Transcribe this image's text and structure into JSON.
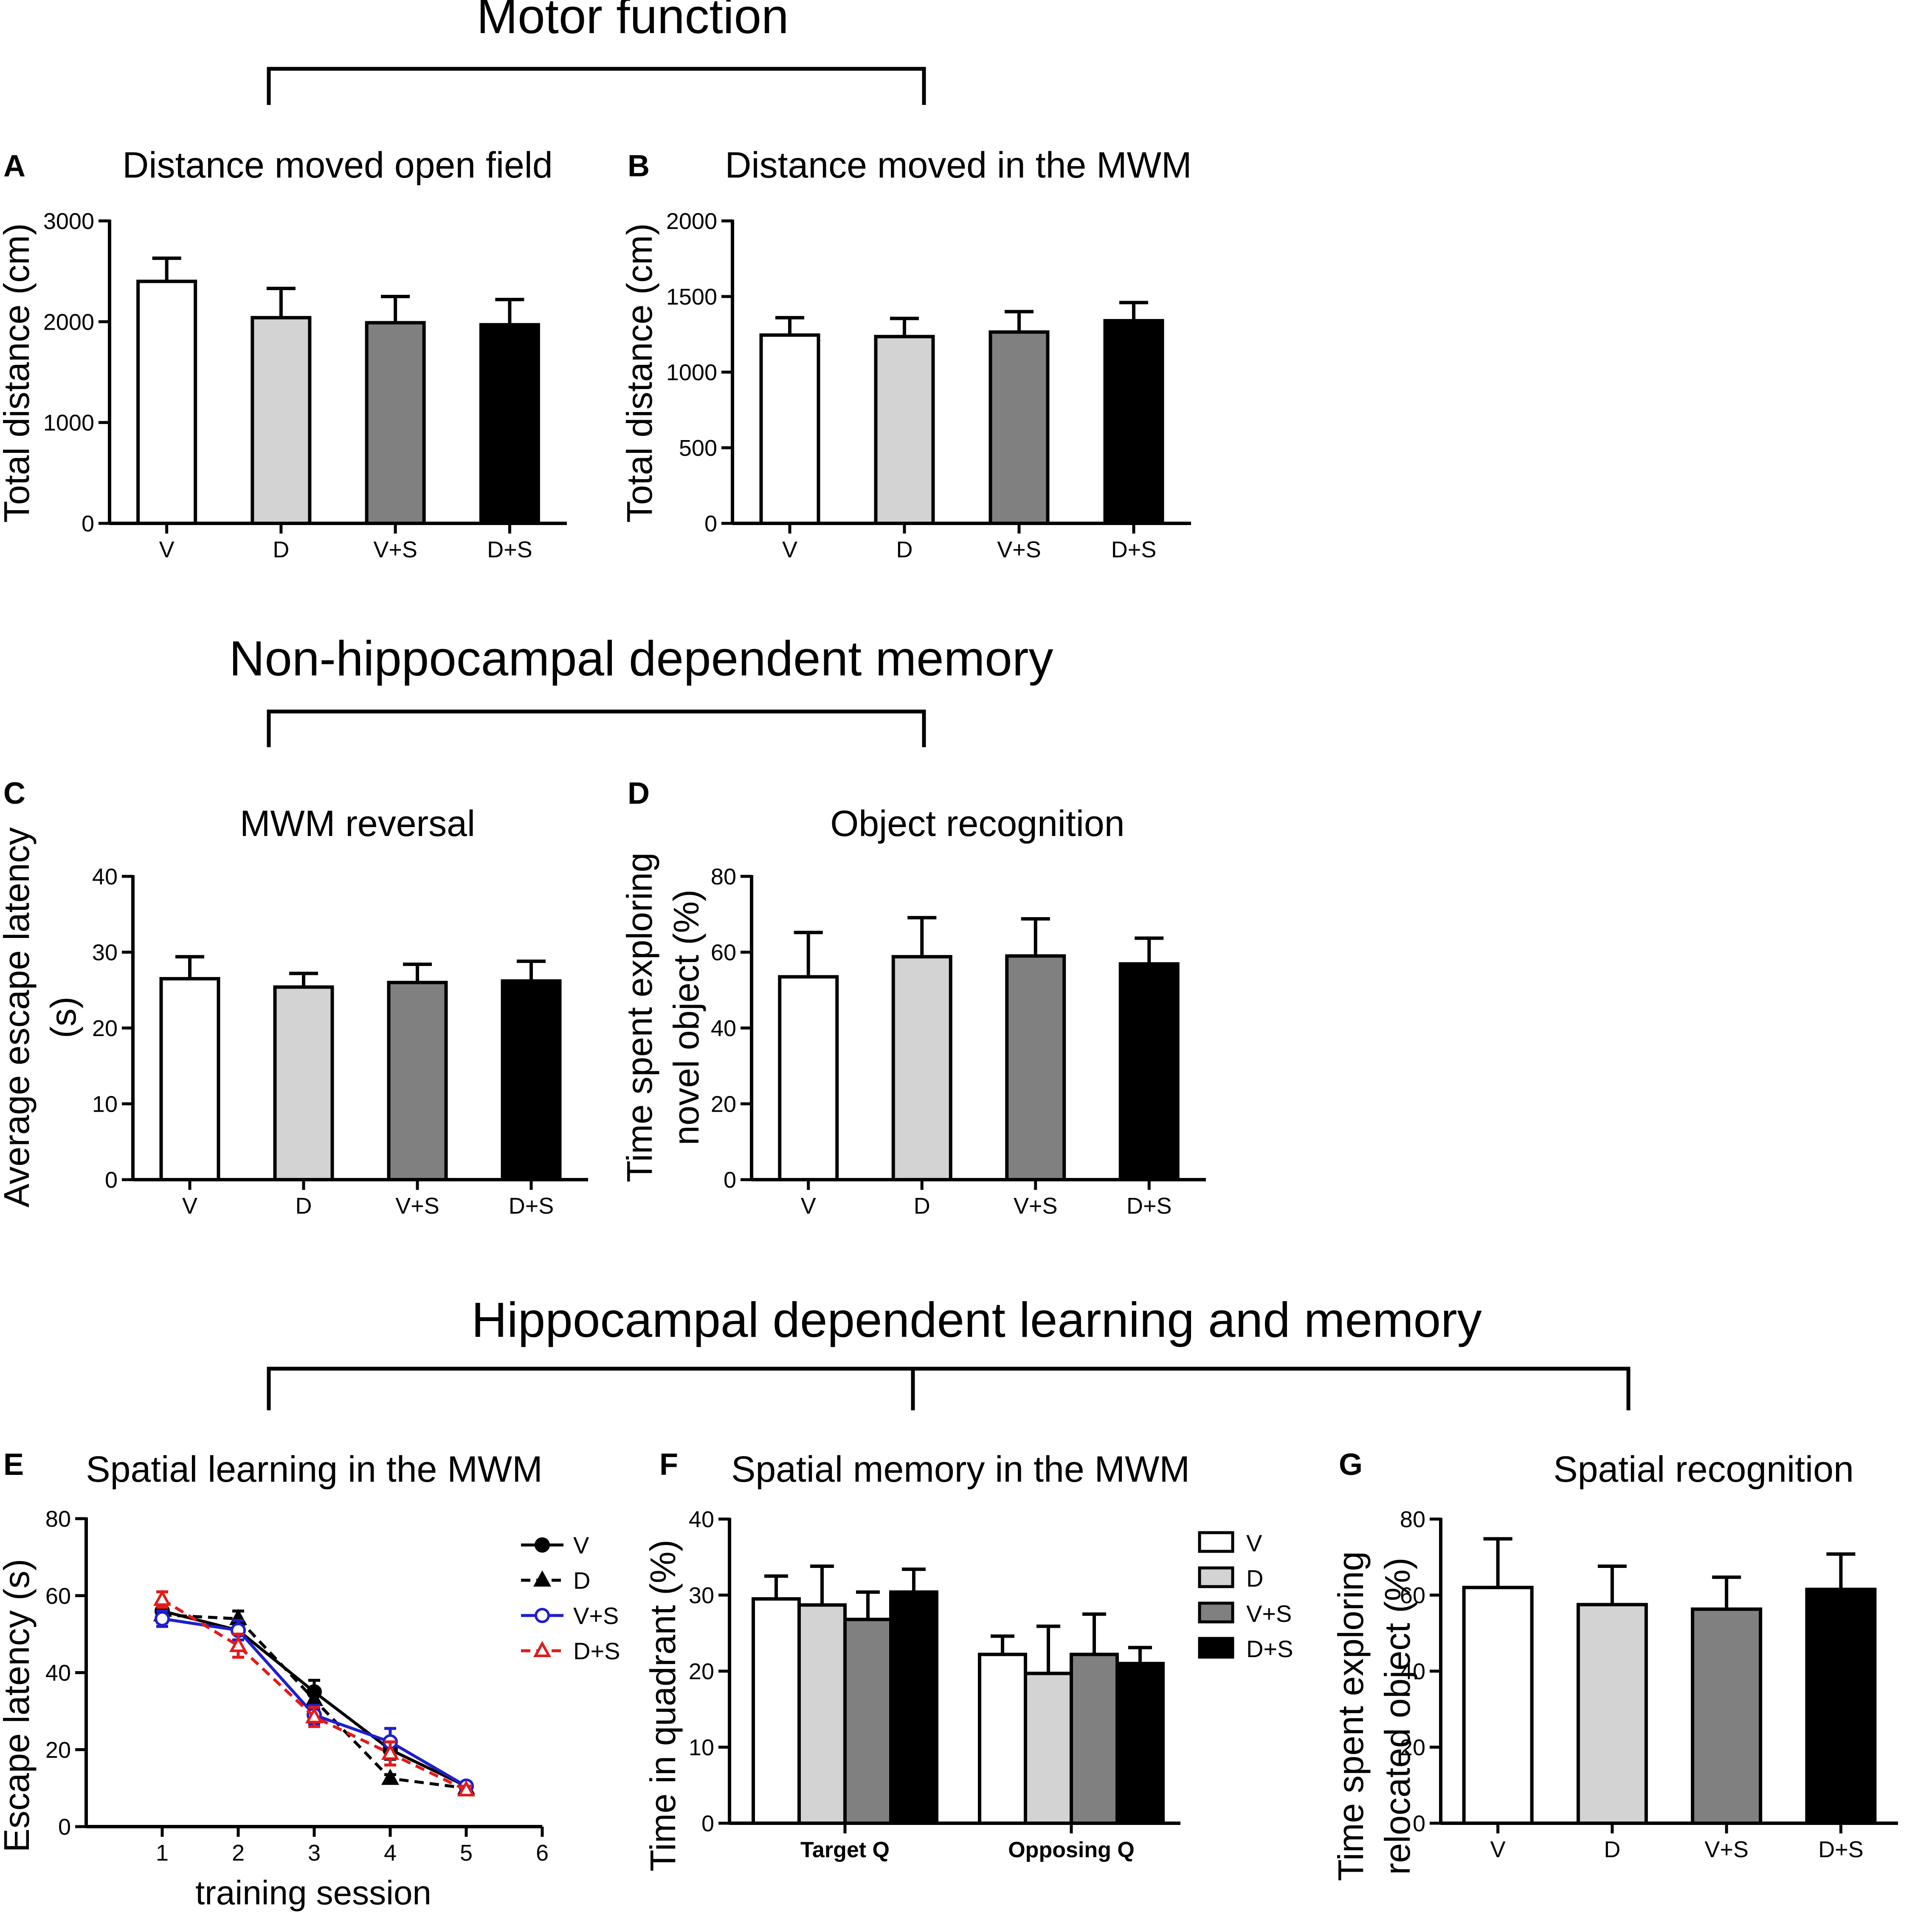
{
  "sections": [
    {
      "title": "Motor function"
    },
    {
      "title": "Non-hippocampal dependent memory"
    },
    {
      "title": "Hippocampal dependent learning and memory"
    }
  ],
  "colors": {
    "V": "#ffffff",
    "D": "#d3d3d3",
    "V+S": "#808080",
    "D+S": "#000000",
    "stroke": "#000000",
    "blue": "#1f1fcc",
    "red": "#e31a1a"
  },
  "chart_data": [
    {
      "panel": "A",
      "type": "bar",
      "title": "Distance moved open field",
      "xlabel": "",
      "ylabel": "Total distance (cm)",
      "ylim": [
        0,
        3000
      ],
      "yticks": [
        0,
        1000,
        2000,
        3000
      ],
      "categories": [
        "V",
        "D",
        "V+S",
        "D+S"
      ],
      "values": [
        2400,
        2040,
        1990,
        1970
      ],
      "errors": [
        230,
        290,
        260,
        250
      ]
    },
    {
      "panel": "B",
      "type": "bar",
      "title": "Distance moved in the MWM",
      "xlabel": "",
      "ylabel": "Total distance (cm)",
      "ylim": [
        0,
        2000
      ],
      "yticks": [
        0,
        500,
        1000,
        1500,
        2000
      ],
      "categories": [
        "V",
        "D",
        "V+S",
        "D+S"
      ],
      "values": [
        1245,
        1235,
        1265,
        1340
      ],
      "errors": [
        115,
        120,
        135,
        120
      ]
    },
    {
      "panel": "C",
      "type": "bar",
      "title": "MWM reversal",
      "xlabel": "",
      "ylabel": "Average escape latency (s)",
      "ylim": [
        0,
        40
      ],
      "yticks": [
        0,
        10,
        20,
        30,
        40
      ],
      "categories": [
        "V",
        "D",
        "V+S",
        "D+S"
      ],
      "values": [
        26.5,
        25.4,
        26.0,
        26.2
      ],
      "errors": [
        2.9,
        1.8,
        2.4,
        2.6
      ]
    },
    {
      "panel": "D",
      "type": "bar",
      "title": "Object recognition",
      "xlabel": "",
      "ylabel": "Time spent exploring novel object (%)",
      "ylim": [
        0,
        80
      ],
      "yticks": [
        0,
        20,
        40,
        60,
        80
      ],
      "categories": [
        "V",
        "D",
        "V+S",
        "D+S"
      ],
      "values": [
        53.5,
        58.8,
        59.0,
        56.9
      ],
      "errors": [
        11.7,
        10.3,
        9.8,
        6.8
      ]
    },
    {
      "panel": "E",
      "type": "line",
      "title": "Spatial learning in the MWM",
      "xlabel": "training session",
      "ylabel": "Escape latency (s)",
      "xlim": [
        0,
        6
      ],
      "xticks": [
        1,
        2,
        3,
        4,
        5,
        6
      ],
      "ylim": [
        0,
        80
      ],
      "yticks": [
        0,
        20,
        40,
        60,
        80
      ],
      "x": [
        1,
        2,
        3,
        4,
        5
      ],
      "series": [
        {
          "name": "V",
          "values": [
            56,
            51,
            35,
            20,
            10.5
          ],
          "errors": [
            2,
            2.5,
            3,
            2.5,
            1
          ]
        },
        {
          "name": "D",
          "values": [
            55,
            54,
            33,
            12.5,
            10
          ],
          "errors": [
            2,
            2,
            2.5,
            1,
            1
          ]
        },
        {
          "name": "V+S",
          "values": [
            54,
            51,
            29,
            22,
            10.5
          ],
          "errors": [
            2,
            2.5,
            2.5,
            3.5,
            1
          ]
        },
        {
          "name": "D+S",
          "values": [
            59,
            47,
            28.5,
            19,
            9.5
          ],
          "errors": [
            2,
            3,
            2.5,
            3,
            1
          ]
        }
      ]
    },
    {
      "panel": "F",
      "type": "bar",
      "title": "Spatial memory in the MWM",
      "xlabel": "",
      "ylabel": "Time in quadrant (%)",
      "ylim": [
        0,
        40
      ],
      "yticks": [
        0,
        10,
        20,
        30,
        40
      ],
      "categories": [
        "Target Q",
        "Opposing Q"
      ],
      "series": [
        {
          "name": "V",
          "values": [
            29.5,
            22.2
          ],
          "errors": [
            3.0,
            2.4
          ]
        },
        {
          "name": "D",
          "values": [
            28.7,
            19.7
          ],
          "errors": [
            5.1,
            6.2
          ]
        },
        {
          "name": "V+S",
          "values": [
            26.8,
            22.2
          ],
          "errors": [
            3.6,
            5.3
          ]
        },
        {
          "name": "D+S",
          "values": [
            30.4,
            21.0
          ],
          "errors": [
            3.0,
            2.1
          ]
        }
      ]
    },
    {
      "panel": "G",
      "type": "bar",
      "title": "Spatial recognition",
      "xlabel": "",
      "ylabel": "Time spent exploring relocated object (%)",
      "ylim": [
        0,
        80
      ],
      "yticks": [
        0,
        20,
        40,
        60,
        80
      ],
      "categories": [
        "V",
        "D",
        "V+S",
        "D+S"
      ],
      "values": [
        62.0,
        57.5,
        56.3,
        61.5
      ],
      "errors": [
        12.8,
        10.1,
        8.4,
        9.3
      ]
    }
  ]
}
